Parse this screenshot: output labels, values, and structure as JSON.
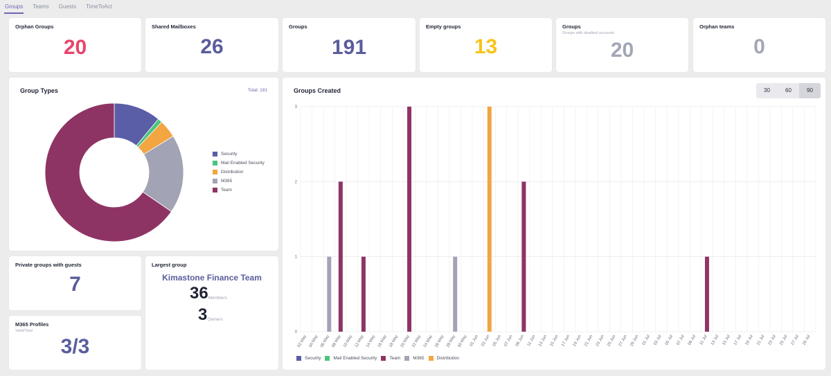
{
  "tabs": [
    {
      "label": "Groups",
      "active": true
    },
    {
      "label": "Teams",
      "active": false
    },
    {
      "label": "Guests",
      "active": false
    },
    {
      "label": "TimeToAct",
      "active": false
    }
  ],
  "stats": {
    "orphan_groups": {
      "title": "Orphan Groups",
      "value": "20",
      "color": "#e8456b"
    },
    "shared_mailboxes": {
      "title": "Shared Mailboxes",
      "value": "26",
      "color": "#5a5d9c"
    },
    "groups": {
      "title": "Groups",
      "value": "191",
      "color": "#5a5d9c"
    },
    "empty_groups": {
      "title": "Empty groups",
      "value": "13",
      "color": "#f5c518"
    },
    "disabled_groups": {
      "title": "Groups",
      "subtitle": "Groups with disabled accounts",
      "value": "20",
      "color": "#a3a6b5"
    },
    "orphan_teams": {
      "title": "Orphan teams",
      "value": "0",
      "color": "#a3a6b5"
    },
    "private_guests": {
      "title": "Private groups with guests",
      "value": "7",
      "color": "#5a5d9c"
    },
    "m365_profiles": {
      "title": "M365 Profiles",
      "subtitle": "Valid/Total",
      "value": "3/3",
      "color": "#5a5d9c"
    }
  },
  "largest_group": {
    "title": "Largest group",
    "name": "Kimastone Finance Team",
    "members_value": "36",
    "members_label": "Members",
    "owners_value": "3",
    "owners_label": "Owners"
  },
  "group_types": {
    "title": "Group Types",
    "total_label": "Total: 191"
  },
  "groups_created": {
    "title": "Groups Created",
    "ranges": [
      {
        "label": "30",
        "active": false
      },
      {
        "label": "60",
        "active": false
      },
      {
        "label": "90",
        "active": true
      }
    ]
  },
  "chart_data": [
    {
      "type": "pie",
      "title": "Group Types",
      "donut": true,
      "categories": [
        "Security",
        "Mail Enabled Security",
        "Distribution",
        "M365",
        "Team"
      ],
      "values": [
        21,
        2,
        8,
        35,
        125
      ],
      "colors": [
        "#5a5ea6",
        "#4bc47f",
        "#f2a541",
        "#a2a4b5",
        "#8e3464"
      ],
      "legend_position": "right"
    },
    {
      "type": "bar",
      "title": "Groups Created",
      "stacked": true,
      "categories": [
        "02 May",
        "04 May",
        "06 May",
        "08 May",
        "10 May",
        "12 May",
        "14 May",
        "16 May",
        "18 May",
        "20 May",
        "22 May",
        "24 May",
        "26 May",
        "28 May",
        "30 May",
        "01 Jun",
        "03 Jun",
        "05 Jun",
        "07 Jun",
        "09 Jun",
        "11 Jun",
        "13 Jun",
        "15 Jun",
        "17 Jun",
        "19 Jun",
        "21 Jun",
        "23 Jun",
        "25 Jun",
        "27 Jun",
        "29 Jun",
        "01 Jul",
        "03 Jul",
        "05 Jul",
        "07 Jul",
        "09 Jul",
        "11 Jul",
        "13 Jul",
        "15 Jul",
        "17 Jul",
        "19 Jul",
        "21 Jul",
        "23 Jul",
        "25 Jul",
        "27 Jul",
        "29 Jul"
      ],
      "series": [
        {
          "name": "Security",
          "color": "#5a5ea6",
          "values": [
            0,
            0,
            0,
            0,
            0,
            0,
            0,
            0,
            0,
            0,
            0,
            0,
            0,
            0,
            0,
            0,
            0,
            0,
            0,
            0,
            0,
            0,
            0,
            0,
            0,
            0,
            0,
            0,
            0,
            0,
            0,
            0,
            0,
            0,
            0,
            0,
            0,
            0,
            0,
            0,
            0,
            0,
            0,
            0,
            0
          ]
        },
        {
          "name": "Mail Enabled Security",
          "color": "#4bc47f",
          "values": [
            0,
            0,
            0,
            0,
            0,
            0,
            0,
            0,
            0,
            0,
            0,
            0,
            0,
            0,
            0,
            0,
            0,
            0,
            0,
            0,
            0,
            0,
            0,
            0,
            0,
            0,
            0,
            0,
            0,
            0,
            0,
            0,
            0,
            0,
            0,
            0,
            0,
            0,
            0,
            0,
            0,
            0,
            0,
            0,
            0
          ]
        },
        {
          "name": "Team",
          "color": "#8e3464",
          "values": [
            0,
            0,
            0,
            2,
            0,
            1,
            0,
            0,
            0,
            3,
            0,
            0,
            0,
            0,
            0,
            0,
            0,
            0,
            0,
            2,
            0,
            0,
            0,
            0,
            0,
            0,
            0,
            0,
            0,
            0,
            0,
            0,
            0,
            0,
            0,
            1,
            0,
            0,
            0,
            0,
            0,
            0,
            0,
            0,
            0
          ]
        },
        {
          "name": "M365",
          "color": "#a2a4b5",
          "values": [
            0,
            0,
            1,
            0,
            0,
            0,
            0,
            0,
            0,
            0,
            0,
            0,
            0,
            1,
            0,
            0,
            0,
            0,
            0,
            0,
            0,
            0,
            0,
            0,
            0,
            0,
            0,
            0,
            0,
            0,
            0,
            0,
            0,
            0,
            0,
            0,
            0,
            0,
            0,
            0,
            0,
            0,
            0,
            0,
            0
          ]
        },
        {
          "name": "Distribution",
          "color": "#f2a541",
          "values": [
            0,
            0,
            0,
            0,
            0,
            0,
            0,
            0,
            0,
            0,
            0,
            0,
            0,
            0,
            0,
            0,
            3,
            0,
            0,
            0,
            0,
            0,
            0,
            0,
            0,
            0,
            0,
            0,
            0,
            0,
            0,
            0,
            0,
            0,
            0,
            0,
            0,
            0,
            0,
            0,
            0,
            0,
            0,
            0,
            0
          ]
        }
      ],
      "ylim": [
        0,
        3
      ],
      "yticks": [
        0,
        1,
        2,
        3
      ],
      "legend_position": "bottom-left",
      "grid": true
    }
  ]
}
